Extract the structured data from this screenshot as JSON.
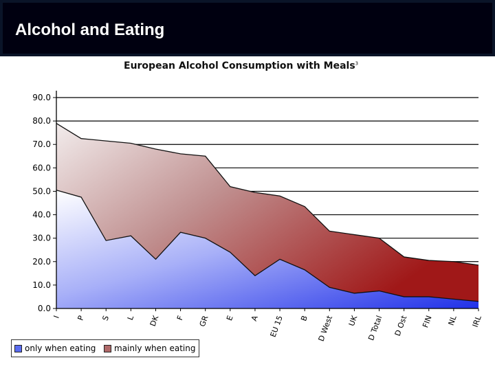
{
  "slide": {
    "title": "Alcohol and Eating"
  },
  "chart_data": {
    "type": "area",
    "title": "European Alcohol Consumption with Meals",
    "title_superscript": "3",
    "categories": [
      "I",
      "P",
      "S",
      "L",
      "DK",
      "F",
      "GR",
      "E",
      "A",
      "EU 15",
      "B",
      "D West",
      "UK",
      "D Total",
      "D Ost",
      "FIN",
      "NL",
      "IRL"
    ],
    "ylim": [
      0,
      90
    ],
    "yticks": [
      "0.0",
      "10.0",
      "20.0",
      "30.0",
      "40.0",
      "50.0",
      "60.0",
      "70.0",
      "80.0",
      "90.0"
    ],
    "series": [
      {
        "name": "only when eating",
        "values": [
          50.5,
          47.5,
          29,
          31,
          21,
          32.5,
          30,
          24,
          14,
          21,
          16.5,
          9,
          6.5,
          7.5,
          5,
          5,
          4,
          3
        ],
        "color": "#3a4cf0"
      },
      {
        "name": "mainly when eating",
        "values": [
          28.5,
          25,
          42.5,
          39.5,
          47,
          33.5,
          35,
          28,
          35.5,
          27,
          27,
          24,
          25,
          22.5,
          17,
          15.5,
          16,
          15.5
        ],
        "color": "#a03838"
      }
    ],
    "stacked": true,
    "grid": true,
    "legend_position": "bottom-left"
  }
}
